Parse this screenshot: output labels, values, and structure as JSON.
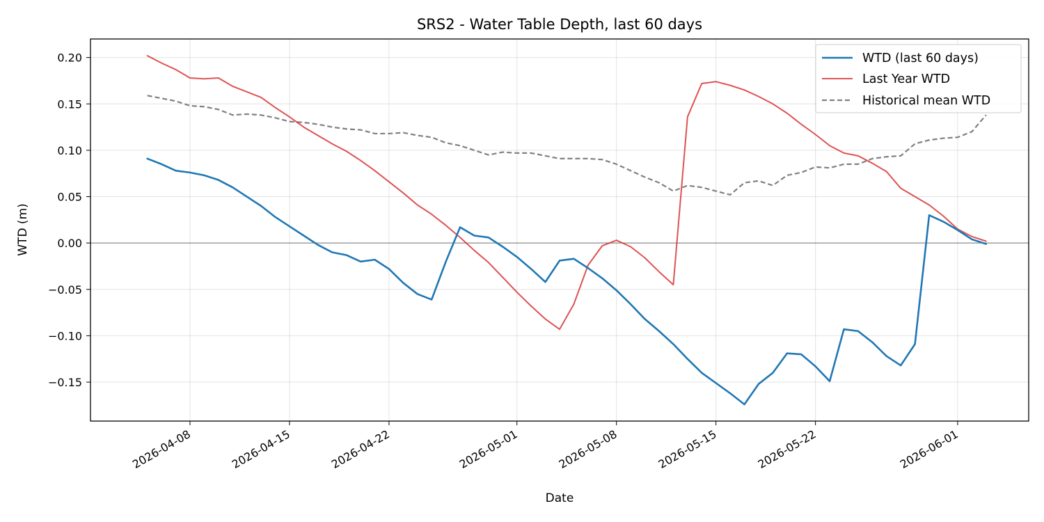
{
  "chart_data": {
    "type": "line",
    "title": "SRS2 - Water Table Depth, last 60 days",
    "xlabel": "Date",
    "ylabel": "WTD (m)",
    "x_ticks": [
      "2026-04-08",
      "2026-04-15",
      "2026-04-22",
      "2026-05-01",
      "2026-05-08",
      "2026-05-15",
      "2026-05-22",
      "2026-06-01"
    ],
    "y_ticks": [
      "0.20",
      "0.15",
      "0.10",
      "0.05",
      "0.00",
      "−0.05",
      "−0.10",
      "−0.15"
    ],
    "y_tick_values": [
      0.2,
      0.15,
      0.1,
      0.05,
      0.0,
      -0.05,
      -0.1,
      -0.15
    ],
    "xlim": [
      "2026-04-01",
      "2026-06-06"
    ],
    "ylim": [
      -0.192,
      0.22
    ],
    "grid": true,
    "zero_line": true,
    "legend_position": "top-right",
    "x": [
      "2026-04-05",
      "2026-04-06",
      "2026-04-07",
      "2026-04-08",
      "2026-04-09",
      "2026-04-10",
      "2026-04-11",
      "2026-04-12",
      "2026-04-13",
      "2026-04-14",
      "2026-04-15",
      "2026-04-16",
      "2026-04-17",
      "2026-04-18",
      "2026-04-19",
      "2026-04-20",
      "2026-04-21",
      "2026-04-22",
      "2026-04-23",
      "2026-04-24",
      "2026-04-25",
      "2026-04-26",
      "2026-04-27",
      "2026-04-28",
      "2026-04-29",
      "2026-04-30",
      "2026-05-01",
      "2026-05-02",
      "2026-05-03",
      "2026-05-04",
      "2026-05-05",
      "2026-05-06",
      "2026-05-07",
      "2026-05-08",
      "2026-05-09",
      "2026-05-10",
      "2026-05-11",
      "2026-05-12",
      "2026-05-13",
      "2026-05-14",
      "2026-05-15",
      "2026-05-16",
      "2026-05-17",
      "2026-05-18",
      "2026-05-19",
      "2026-05-20",
      "2026-05-21",
      "2026-05-22",
      "2026-05-23",
      "2026-05-24",
      "2026-05-25",
      "2026-05-26",
      "2026-05-27",
      "2026-05-28",
      "2026-05-29",
      "2026-05-30",
      "2026-05-31",
      "2026-06-01",
      "2026-06-02",
      "2026-06-03"
    ],
    "series": [
      {
        "name": "WTD (last 60 days)",
        "color": "#1f77b4",
        "style": "solid",
        "values": [
          0.091,
          0.085,
          0.078,
          0.076,
          0.073,
          0.068,
          0.06,
          0.05,
          0.04,
          0.028,
          0.018,
          0.008,
          -0.002,
          -0.01,
          -0.013,
          -0.02,
          -0.018,
          -0.028,
          -0.043,
          -0.055,
          -0.061,
          -0.02,
          0.017,
          0.008,
          0.006,
          -0.004,
          -0.015,
          -0.028,
          -0.042,
          -0.019,
          -0.017,
          -0.027,
          -0.038,
          -0.051,
          -0.066,
          -0.082,
          -0.095,
          -0.109,
          -0.125,
          -0.14,
          -0.151,
          -0.162,
          -0.174,
          -0.152,
          -0.14,
          -0.119,
          -0.12,
          -0.133,
          -0.149,
          -0.093,
          -0.095,
          -0.107,
          -0.122,
          -0.132,
          -0.109,
          0.03,
          0.023,
          0.014,
          0.004,
          -0.001
        ]
      },
      {
        "name": "Last Year WTD",
        "color": "#d62728",
        "style": "solid",
        "values": [
          0.202,
          0.194,
          0.187,
          0.178,
          0.177,
          0.178,
          0.169,
          0.163,
          0.157,
          0.146,
          0.136,
          0.125,
          0.116,
          0.107,
          0.099,
          0.089,
          0.078,
          0.066,
          0.054,
          0.041,
          0.031,
          0.019,
          0.006,
          -0.008,
          -0.021,
          -0.037,
          -0.053,
          -0.068,
          -0.082,
          -0.093,
          -0.066,
          -0.024,
          -0.003,
          0.003,
          -0.004,
          -0.016,
          -0.031,
          -0.045,
          0.136,
          0.172,
          0.174,
          0.17,
          0.165,
          0.158,
          0.15,
          0.14,
          0.128,
          0.117,
          0.105,
          0.097,
          0.094,
          0.086,
          0.077,
          0.059,
          0.05,
          0.041,
          0.029,
          0.015,
          0.007,
          0.002
        ]
      },
      {
        "name": "Historical mean WTD",
        "color": "#808080",
        "style": "dashed",
        "values": [
          0.159,
          0.156,
          0.153,
          0.148,
          0.147,
          0.144,
          0.138,
          0.139,
          0.138,
          0.135,
          0.131,
          0.13,
          0.128,
          0.125,
          0.123,
          0.122,
          0.118,
          0.118,
          0.119,
          0.116,
          0.114,
          0.108,
          0.105,
          0.1,
          0.095,
          0.098,
          0.097,
          0.097,
          0.094,
          0.091,
          0.091,
          0.091,
          0.09,
          0.085,
          0.078,
          0.071,
          0.065,
          0.056,
          0.062,
          0.06,
          0.056,
          0.052,
          0.065,
          0.067,
          0.062,
          0.073,
          0.076,
          0.082,
          0.081,
          0.085,
          0.085,
          0.091,
          0.093,
          0.094,
          0.107,
          0.111,
          0.113,
          0.114,
          0.12,
          0.138
        ]
      }
    ]
  }
}
